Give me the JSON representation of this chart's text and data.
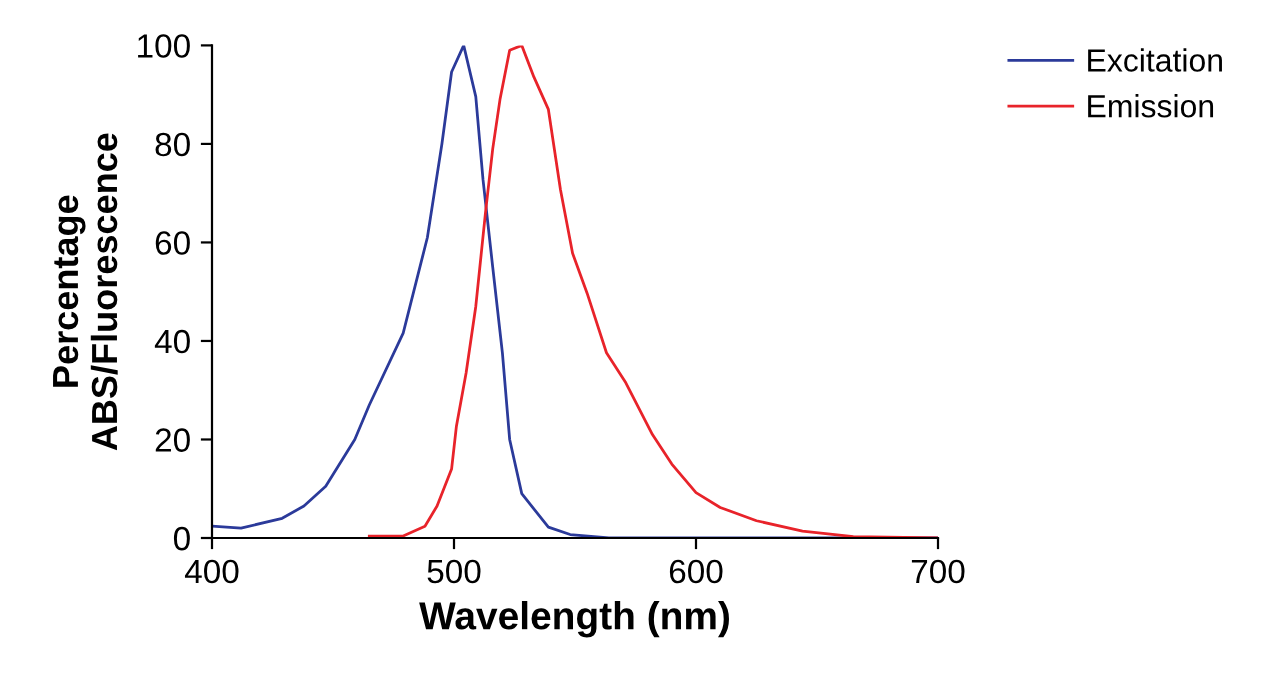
{
  "chart_data": {
    "type": "line",
    "xlabel": "Wavelength (nm)",
    "ylabel": "Percentage\nABS/Fluorescence",
    "xlim": [
      400,
      700
    ],
    "xticks": [
      400,
      500,
      600,
      700
    ],
    "ylim": [
      0,
      100
    ],
    "yticks": [
      0,
      20,
      40,
      60,
      80,
      100
    ],
    "grid": false,
    "legend": "top right",
    "marker": "none",
    "line_style": "solid",
    "series": [
      {
        "name": "Excitation",
        "color": "#2b3a9a",
        "x": [
          400,
          412,
          429,
          438,
          447,
          459,
          465,
          479,
          489,
          495,
          499,
          504,
          509,
          512,
          516,
          520,
          523,
          528,
          539,
          548,
          564,
          577,
          600,
          650,
          700
        ],
        "values": [
          2.4,
          2,
          4,
          6.5,
          10.5,
          20,
          27,
          41.6,
          61,
          80,
          94.6,
          100,
          89.6,
          72.7,
          55,
          37.6,
          20,
          9,
          2.2,
          0.7,
          0,
          0,
          0,
          0,
          0
        ]
      },
      {
        "name": "Emission",
        "color": "#e8232a",
        "x": [
          465,
          479,
          488,
          493,
          499,
          501,
          505,
          509,
          513,
          516,
          519,
          523,
          528,
          533,
          539,
          544,
          549,
          555,
          563,
          571,
          582,
          590,
          600,
          610,
          625,
          644,
          665,
          700
        ],
        "values": [
          0.4,
          0.4,
          2.4,
          6.5,
          14,
          22.7,
          33.5,
          47,
          66,
          79,
          89,
          99,
          100,
          93.6,
          87,
          70.7,
          57.8,
          49.7,
          37.6,
          31.5,
          21,
          15,
          9.2,
          6.2,
          3.5,
          1.4,
          0.3,
          0
        ]
      }
    ]
  }
}
